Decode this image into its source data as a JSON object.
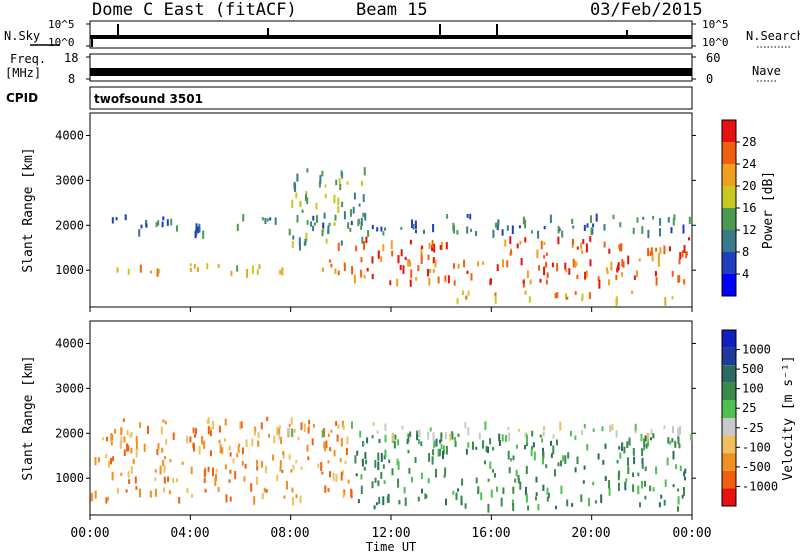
{
  "header": {
    "title": "Dome C East (fitACF)",
    "beam": "Beam 15",
    "date": "03/Feb/2015"
  },
  "strips": {
    "nsky_label": "N.Sky",
    "nsky_ticks": [
      "10^5",
      "10^0"
    ],
    "nsearch_label": "N.Search",
    "freq_label": "Freq.",
    "freq_unit": "[MHz]",
    "freq_ticks": [
      "18",
      "8"
    ],
    "nave_label": "Nave",
    "nave_ticks": [
      "60",
      "0"
    ],
    "cpid_label": "CPID",
    "cpid_value": "twofsound 3501"
  },
  "xaxis": {
    "label": "Time UT",
    "ticks": [
      "00:00",
      "04:00",
      "08:00",
      "12:00",
      "16:00",
      "20:00",
      "00:00"
    ]
  },
  "colors": {
    "power": [
      "#0000ff",
      "#1f3fc0",
      "#3a7a8a",
      "#4a9a50",
      "#c8c820",
      "#f0a020",
      "#f06010",
      "#e81010"
    ],
    "velocity": [
      "#e81010",
      "#f06010",
      "#f09020",
      "#f0c060",
      "#c8c8c8",
      "#50c050",
      "#3a8a4a",
      "#2a6a60",
      "#1e3a9a",
      "#1020c0"
    ]
  },
  "chart_data": [
    {
      "type": "heatmap",
      "panel": "power",
      "ylabel": "Slant Range [km]",
      "yticks": [
        1000,
        2000,
        3000,
        4000
      ],
      "ylim": [
        180,
        4500
      ],
      "xlim_hours": [
        0,
        24
      ],
      "colorbar": {
        "label": "Power [dB]",
        "ticks": [
          "28",
          "24",
          "20",
          "16",
          "12",
          "8",
          "4"
        ],
        "range": [
          0,
          32
        ]
      },
      "features": [
        {
          "hours": [
            0,
            9.5
          ],
          "range_km": [
            900,
            1100
          ],
          "level_db": 18
        },
        {
          "hours": [
            9.5,
            24
          ],
          "range_km": [
            700,
            1700
          ],
          "level_db": 24
        },
        {
          "hours": [
            14.5,
            24
          ],
          "range_km": [
            300,
            500
          ],
          "level_db": 20
        },
        {
          "hours": [
            8,
            11
          ],
          "range_km": [
            1500,
            3300
          ],
          "level_db": 12
        },
        {
          "hours": [
            0,
            24
          ],
          "range_km": [
            1800,
            2200
          ],
          "level_db": 8
        }
      ]
    },
    {
      "type": "heatmap",
      "panel": "velocity",
      "ylabel": "Slant Range [km]",
      "yticks": [
        1000,
        2000,
        3000,
        4000
      ],
      "ylim": [
        180,
        4500
      ],
      "xlim_hours": [
        0,
        24
      ],
      "colorbar": {
        "label": "Velocity [m s⁻¹]",
        "ticks": [
          "1000",
          "500",
          "100",
          "25",
          "-25",
          "-100",
          "-500",
          "-1000"
        ]
      },
      "features": [
        {
          "hours": [
            0,
            10.5
          ],
          "range_km": [
            500,
            2300
          ],
          "velocity": -100
        },
        {
          "hours": [
            10.5,
            24
          ],
          "range_km": [
            300,
            2000
          ],
          "velocity": 100
        },
        {
          "hours": [
            6.5,
            24
          ],
          "range_km": [
            1900,
            2200
          ],
          "velocity": 0
        }
      ]
    }
  ]
}
